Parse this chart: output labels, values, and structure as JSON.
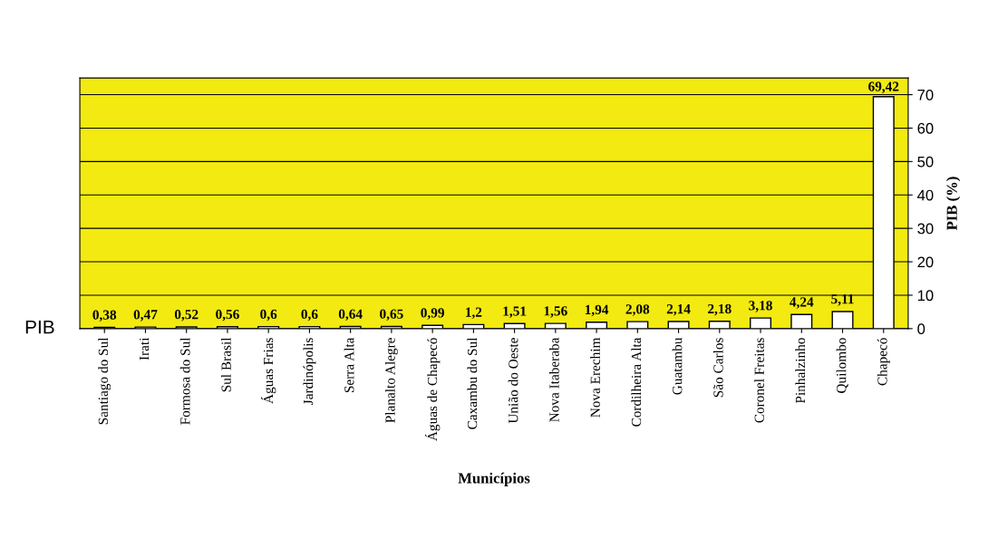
{
  "chart_data": {
    "type": "bar",
    "categories": [
      "Santiago do Sul",
      "Irati",
      "Formosa do Sul",
      "Sul Brasil",
      "Águas Frias",
      "Jardinópolis",
      "Serra Alta",
      "Planalto Alegre",
      "Águas de Chapecó",
      "Caxambu do Sul",
      "União do Oeste",
      "Nova Itaberaba",
      "Nova Erechim",
      "Cordilheira Alta",
      "Guatambu",
      "São Carlos",
      "Coronel Freitas",
      "Pinhalzinho",
      "Quilombo",
      "Chapecó"
    ],
    "series": [
      {
        "name": "PIB",
        "color": "#ffffff",
        "values": [
          0.38,
          0.47,
          0.52,
          0.56,
          0.6,
          0.6,
          0.64,
          0.65,
          0.99,
          1.2,
          1.51,
          1.56,
          1.94,
          2.08,
          2.14,
          2.18,
          3.18,
          4.24,
          5.11,
          69.42
        ],
        "value_labels": [
          "0,38",
          "0,47",
          "0,52",
          "0,56",
          "0,6",
          "0,6",
          "0,64",
          "0,65",
          "0,99",
          "1,2",
          "1,51",
          "1,56",
          "1,94",
          "2,08",
          "2,14",
          "2,18",
          "3,18",
          "4,24",
          "5,11",
          "69,42"
        ]
      }
    ],
    "xlabel": "Municípios",
    "ylabel": "PIB (%)",
    "ylim": [
      0,
      75
    ],
    "yticks": [
      0,
      10,
      20,
      30,
      40,
      50,
      60,
      70
    ],
    "grid": "y",
    "legend": false
  }
}
